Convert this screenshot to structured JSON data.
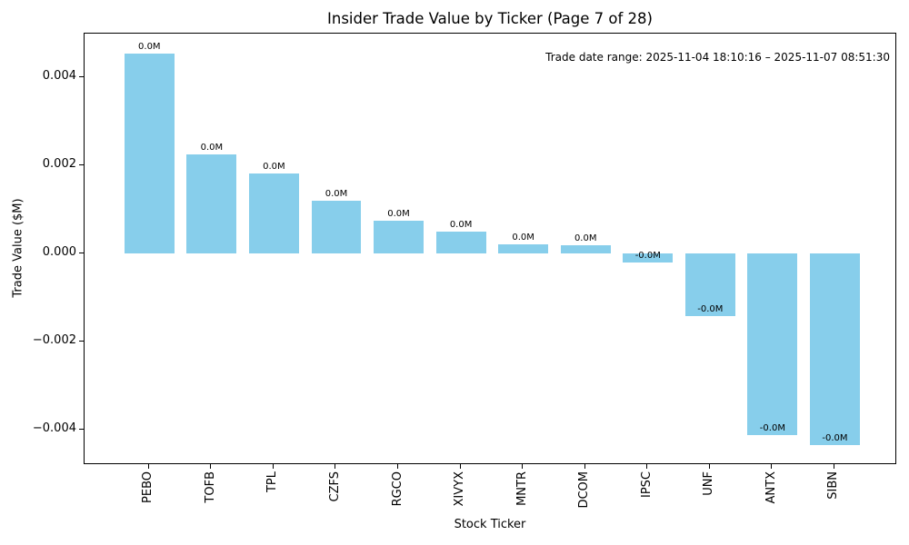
{
  "chart_data": {
    "type": "bar",
    "title": "Insider Trade Value by Ticker (Page 7 of 28)",
    "xlabel": "Stock Ticker",
    "ylabel": "Trade Value ($M)",
    "annotation": "Trade date range: 2025-11-04 18:10:16 – 2025-11-07 08:51:30",
    "categories": [
      "PEBO",
      "TOFB",
      "TPL",
      "CZFS",
      "RGCO",
      "XIVYX",
      "MNTR",
      "DCOM",
      "IPSC",
      "UNF",
      "ANTX",
      "SIBN"
    ],
    "values": [
      0.00454,
      0.00226,
      0.00182,
      0.0012,
      0.00075,
      0.0005,
      0.00021,
      0.00019,
      -0.00019,
      -0.00141,
      -0.00412,
      -0.00435
    ],
    "bar_labels": [
      "0.0M",
      "0.0M",
      "0.0M",
      "0.0M",
      "0.0M",
      "0.0M",
      "0.0M",
      "0.0M",
      "-0.0M",
      "-0.0M",
      "-0.0M",
      "-0.0M"
    ],
    "bar_color": "#87CEEB",
    "ytick_values": [
      0.004,
      0.002,
      0,
      -0.002,
      -0.004
    ],
    "ytick_labels": [
      "0.004",
      "0.002",
      "0.000",
      "−0.002",
      "−0.004"
    ],
    "ylim": [
      -0.0048,
      0.005
    ],
    "xlim": [
      -1.04,
      12.0
    ],
    "grid": false,
    "legend": "none"
  }
}
